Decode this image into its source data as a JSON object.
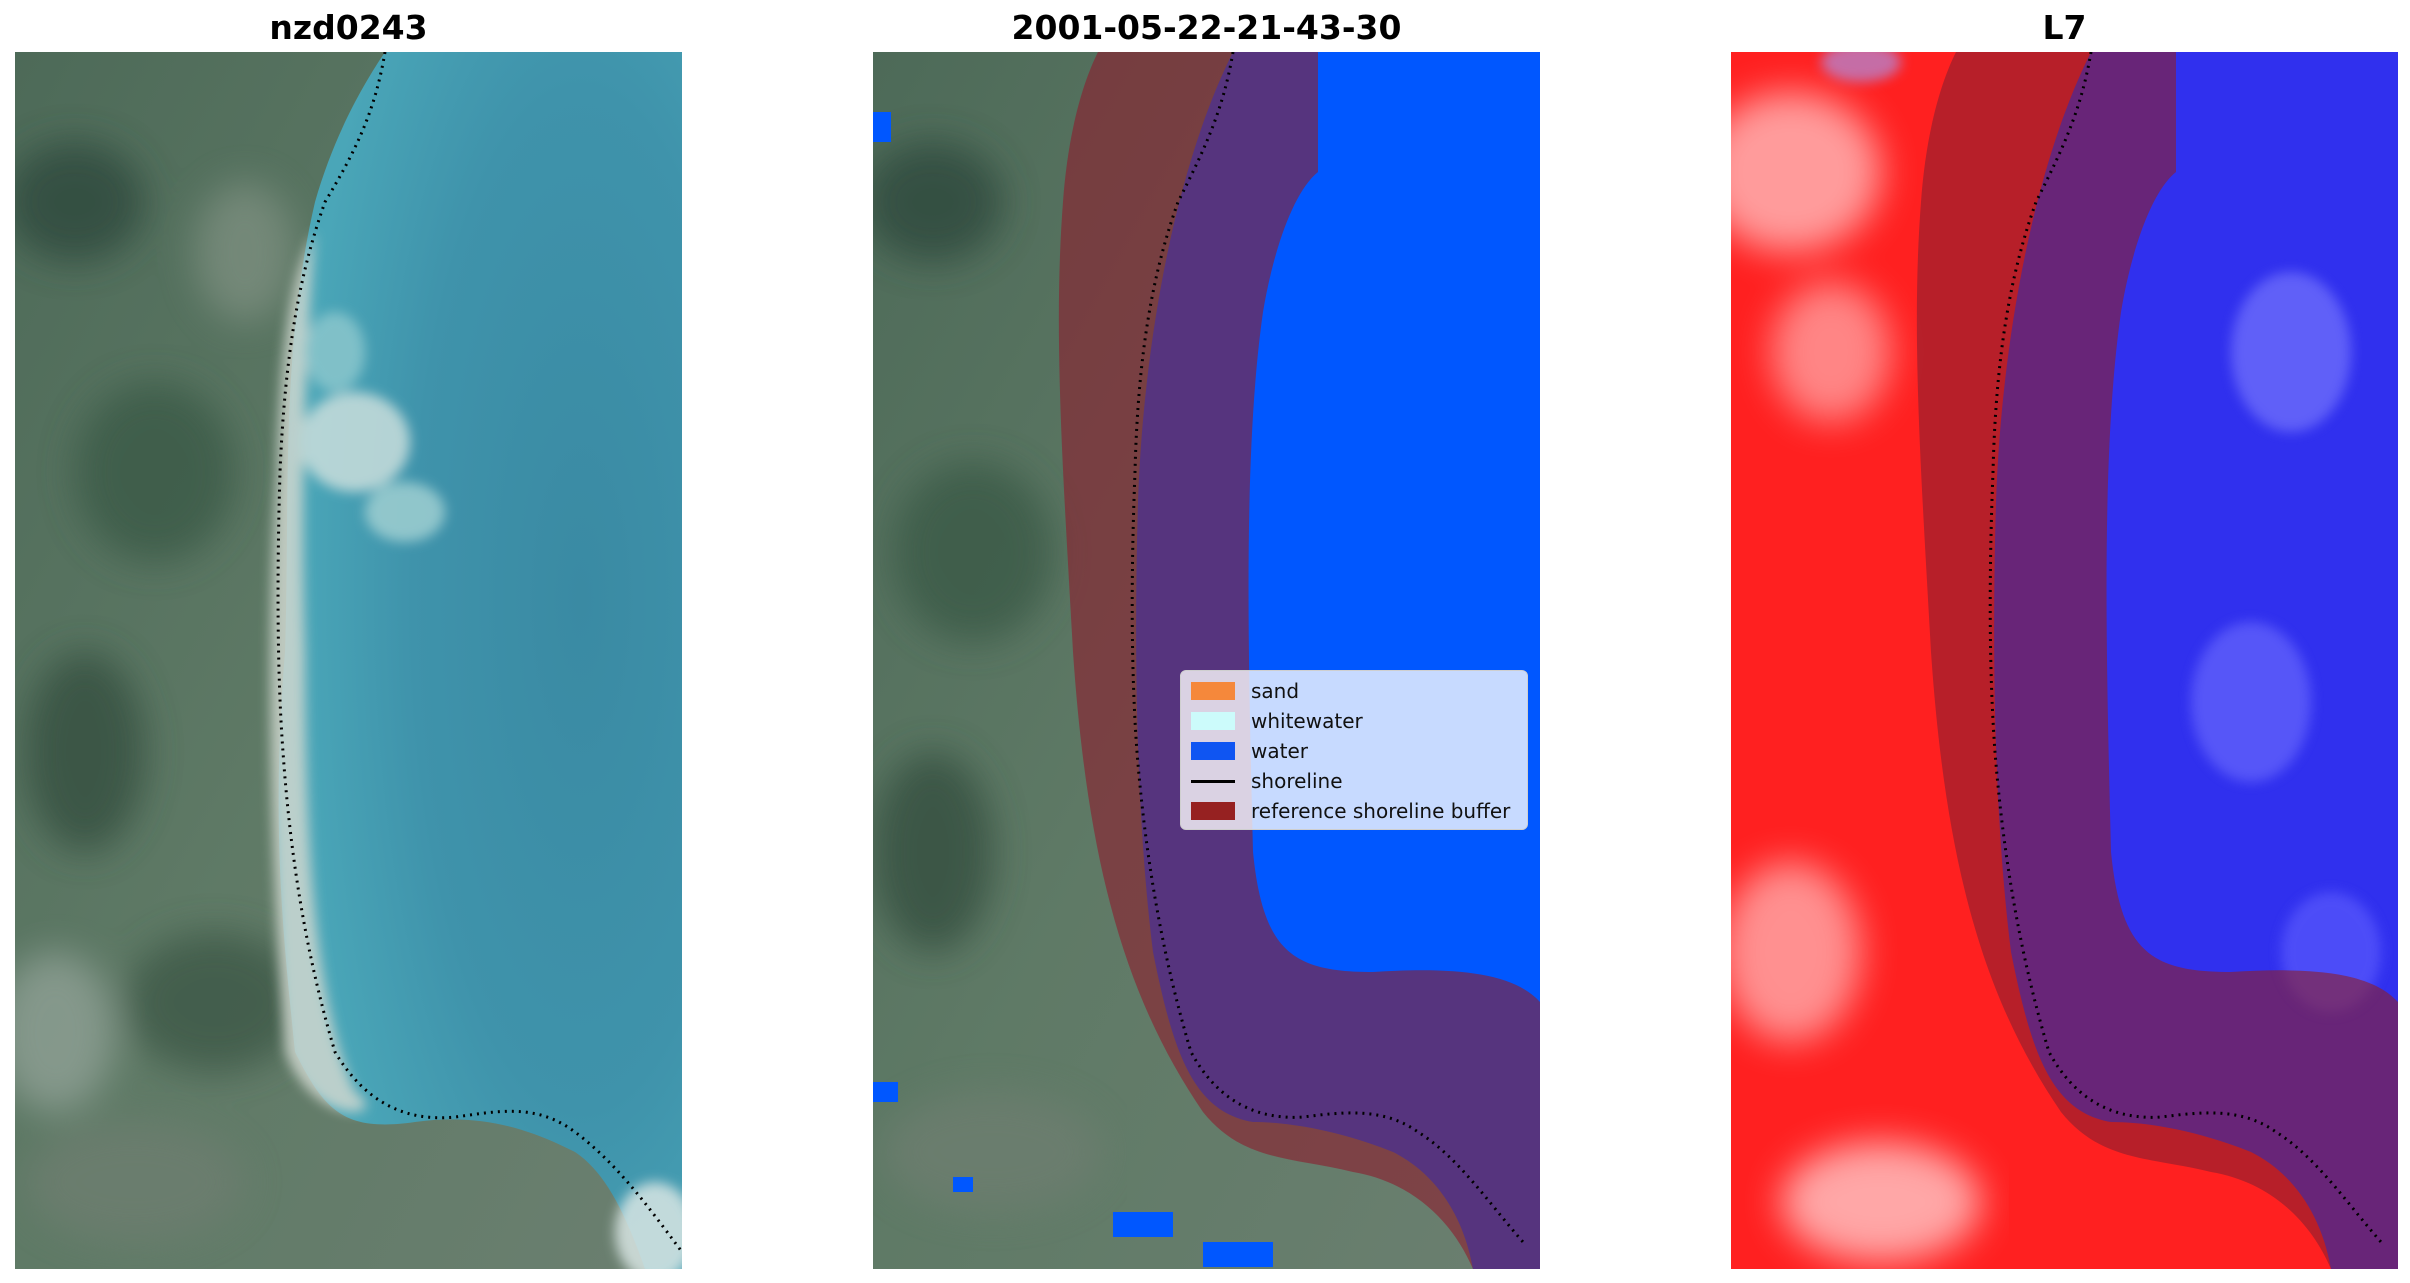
{
  "panels": [
    {
      "title": "nzd0243"
    },
    {
      "title": "2001-05-22-21-43-30"
    },
    {
      "title": "L7"
    }
  ],
  "legend": {
    "items": [
      {
        "label": "sand",
        "color": "#f5883b",
        "kind": "patch"
      },
      {
        "label": "whitewater",
        "color": "#ccfbfb",
        "kind": "patch"
      },
      {
        "label": "water",
        "color": "#0f55f2",
        "kind": "patch"
      },
      {
        "label": "shoreline",
        "color": "#000000",
        "kind": "line"
      },
      {
        "label": "reference shoreline buffer",
        "color": "#962121",
        "kind": "patch"
      }
    ]
  },
  "colors": {
    "water_class": "#0057ff",
    "buffer_overlay": "#8a1f2e",
    "ndwi_land": "#ff1a1a",
    "ndwi_water": "#2a2af0",
    "sea_rgb": "#3f8fa6",
    "vegetation_rgb": "#4f6b55",
    "beach_rgb": "#d6d2c8"
  }
}
